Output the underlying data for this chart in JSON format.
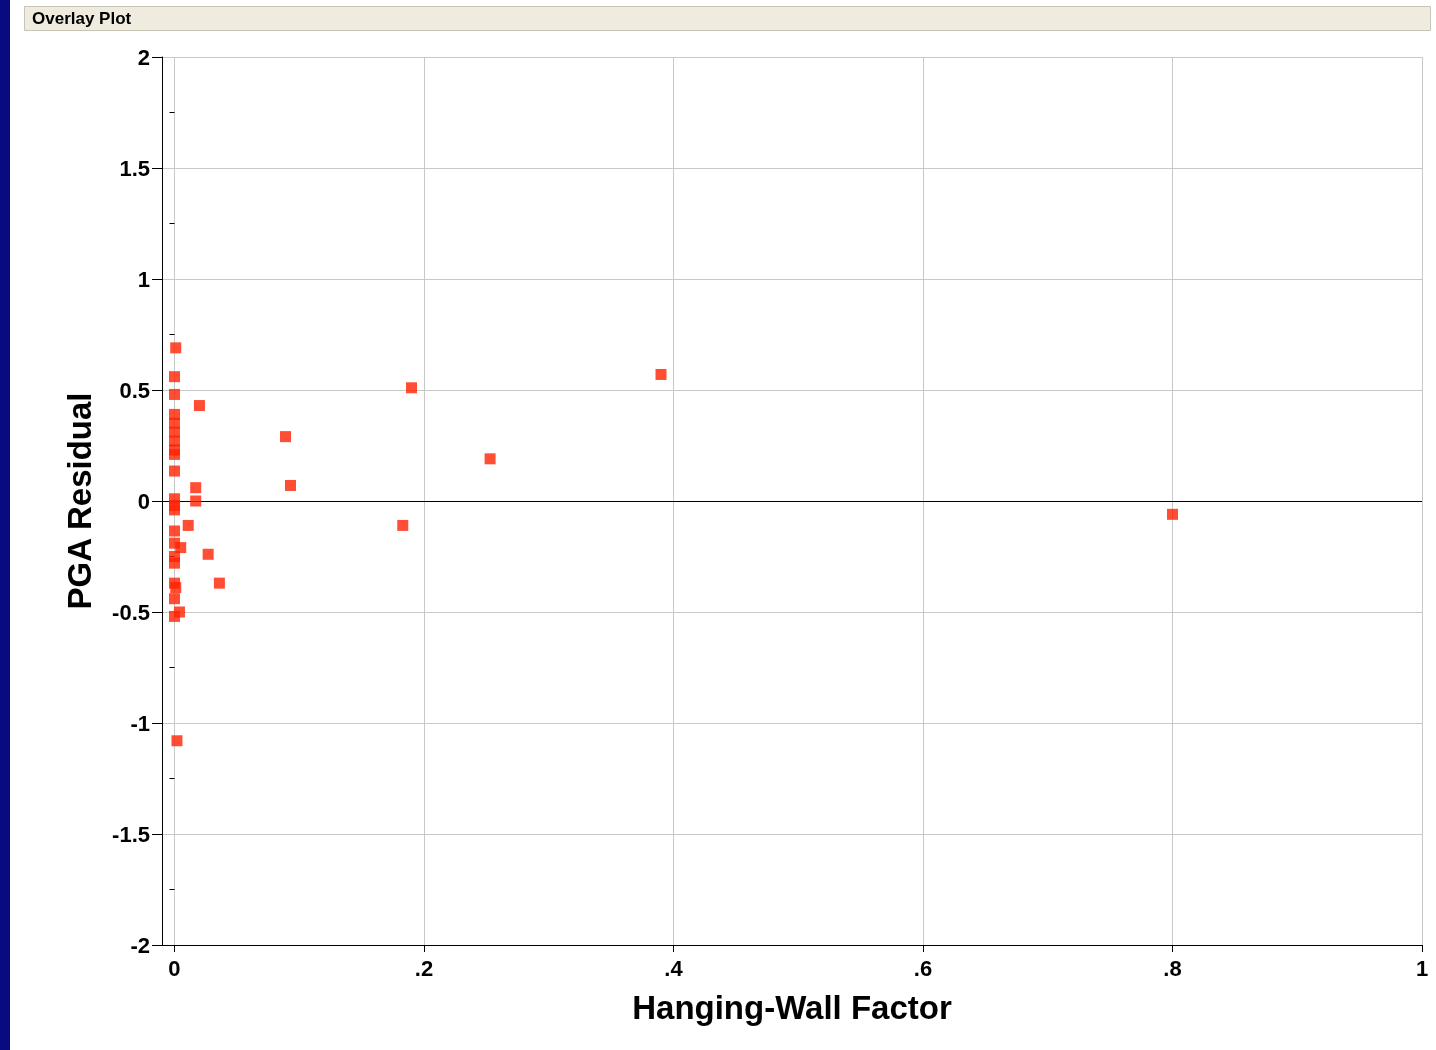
{
  "chart_data": {
    "type": "scatter",
    "title": "Overlay Plot",
    "xlabel": "Hanging-Wall Factor",
    "ylabel": "PGA Residual",
    "x": [
      0.001,
      0,
      0,
      0,
      0,
      0,
      0,
      0,
      0,
      0,
      0,
      0,
      0,
      0,
      0,
      0.005,
      0,
      0,
      0.001,
      0,
      0.004,
      0,
      0,
      0.002,
      0.02,
      0.017,
      0.017,
      0.011,
      0.027,
      0.036,
      0.089,
      0.093,
      0.19,
      0.183,
      0.253,
      0.39,
      0.8
    ],
    "values": [
      0.69,
      0.56,
      0.48,
      0.39,
      0.35,
      0.31,
      0.27,
      0.23,
      0.21,
      0.135,
      0.01,
      -0.02,
      -0.04,
      -0.135,
      -0.19,
      -0.21,
      -0.25,
      -0.28,
      -0.39,
      -0.37,
      -0.5,
      -0.44,
      -0.52,
      -1.08,
      0.43,
      0.06,
      0.0,
      -0.11,
      -0.24,
      -0.37,
      0.29,
      0.07,
      0.51,
      -0.11,
      0.19,
      0.57,
      -0.06
    ],
    "color": "#ff2200",
    "marker": "square",
    "xlim": [
      -0.01,
      1
    ],
    "xticks": [
      0,
      {
        "value": 0.2,
        "label": ".2"
      },
      {
        "value": 0.4,
        "label": ".4"
      },
      {
        "value": 0.6,
        "label": ".6"
      },
      {
        "value": 0.8,
        "label": ".8"
      },
      1
    ],
    "ylim": [
      -2,
      2
    ],
    "yticks": [
      -2,
      {
        "value": -1.75,
        "label": null
      },
      -1.5,
      {
        "value": -1.25,
        "label": null
      },
      -1,
      {
        "value": -0.75,
        "label": null
      },
      -0.5,
      {
        "value": -0.25,
        "label": null
      },
      0,
      {
        "value": 0.25,
        "label": null
      },
      0.5,
      {
        "value": 0.75,
        "label": null
      },
      1,
      {
        "value": 1.25,
        "label": null
      },
      1.5,
      {
        "value": 1.75,
        "label": null
      },
      2
    ],
    "grid": true,
    "ref_lines": [
      {
        "axis": "y",
        "value": 0,
        "color": "#000000"
      }
    ]
  }
}
